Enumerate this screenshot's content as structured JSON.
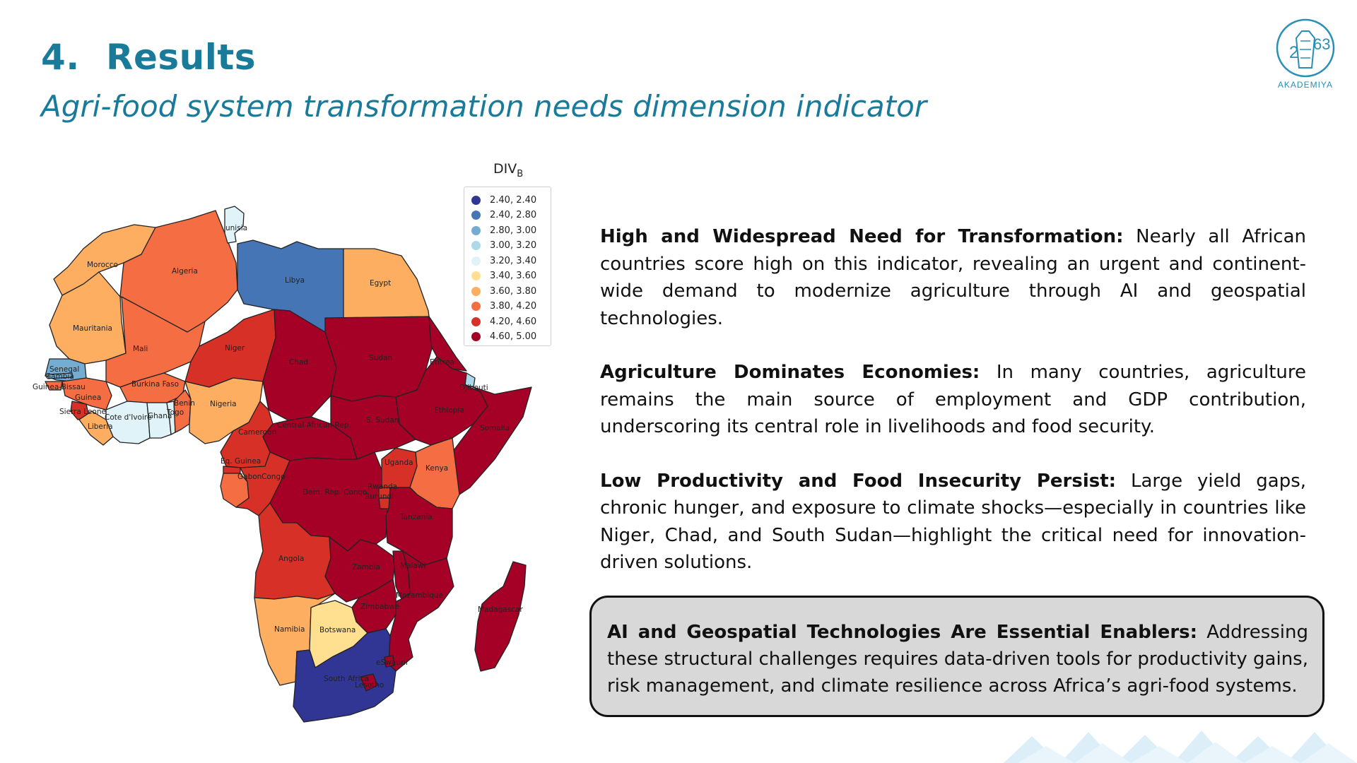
{
  "header": {
    "section_number": "4.",
    "title": "Results",
    "subtitle": "Agri-food system transformation needs dimension indicator"
  },
  "logo": {
    "text": "AKADEMIYA",
    "mark": "2063",
    "icon": "akademiya-logo-icon"
  },
  "map": {
    "legend_title": "DIV",
    "legend_subscript": "B",
    "legend": [
      {
        "label": "2.40, 2.40",
        "color": "#313695"
      },
      {
        "label": "2.40, 2.80",
        "color": "#4575b4"
      },
      {
        "label": "2.80, 3.00",
        "color": "#74add1"
      },
      {
        "label": "3.00, 3.20",
        "color": "#abd9e9"
      },
      {
        "label": "3.20, 3.40",
        "color": "#e0f3f8"
      },
      {
        "label": "3.40, 3.60",
        "color": "#fee090"
      },
      {
        "label": "3.60, 3.80",
        "color": "#fdae61"
      },
      {
        "label": "3.80, 4.20",
        "color": "#f46d43"
      },
      {
        "label": "4.20, 4.60",
        "color": "#d73027"
      },
      {
        "label": "4.60, 5.00",
        "color": "#a50026"
      }
    ],
    "countries": [
      {
        "name": "Tunisia",
        "shown": "unisia"
      },
      {
        "name": "Morocco",
        "shown": "Morocco"
      },
      {
        "name": "Algeria",
        "shown": "Algeria"
      },
      {
        "name": "Libya",
        "shown": "Libya"
      },
      {
        "name": "Egypt",
        "shown": "Egypt"
      },
      {
        "name": "Mauritania",
        "shown": "Mauritania"
      },
      {
        "name": "Mali",
        "shown": "Mali"
      },
      {
        "name": "Niger",
        "shown": "Niger"
      },
      {
        "name": "Chad",
        "shown": "Chad"
      },
      {
        "name": "Sudan",
        "shown": "Sudan"
      },
      {
        "name": "Eritrea",
        "shown": "Eritrea"
      },
      {
        "name": "Djibouti",
        "shown": "Djibouti"
      },
      {
        "name": "Senegal",
        "shown": "Senegal"
      },
      {
        "name": "Gambia",
        "shown": "Gambia"
      },
      {
        "name": "Guinea-Bissau",
        "shown": "Guinea-Bissau"
      },
      {
        "name": "Guinea",
        "shown": "Guinea"
      },
      {
        "name": "Burkina Faso",
        "shown": "Burkina Faso"
      },
      {
        "name": "Sierra Leone",
        "shown": "Sierra Leone"
      },
      {
        "name": "Liberia",
        "shown": "Liberia"
      },
      {
        "name": "Cote d'Ivoire",
        "shown": "Cote d'Ivoire"
      },
      {
        "name": "Ghana",
        "shown": "Ghana"
      },
      {
        "name": "Togo",
        "shown": "Togo"
      },
      {
        "name": "Benin",
        "shown": "Benin"
      },
      {
        "name": "Nigeria",
        "shown": "Nigeria"
      },
      {
        "name": "Cameroon",
        "shown": "Cameroon"
      },
      {
        "name": "Central African Rep.",
        "shown": "Central African Rep."
      },
      {
        "name": "S. Sudan",
        "shown": "S. Sudan"
      },
      {
        "name": "Ethiopia",
        "shown": "Ethiopia"
      },
      {
        "name": "Somalia",
        "shown": "Somalia"
      },
      {
        "name": "Eq. Guinea",
        "shown": "Eq. Guinea"
      },
      {
        "name": "Gabon",
        "shown": "Gabon"
      },
      {
        "name": "Congo",
        "shown": "Congo"
      },
      {
        "name": "Dem. Rep. Congo",
        "shown": "Dem. Rep. Congo"
      },
      {
        "name": "Uganda",
        "shown": "Uganda"
      },
      {
        "name": "Kenya",
        "shown": "Kenya"
      },
      {
        "name": "Rwanda",
        "shown": "Rwanda"
      },
      {
        "name": "Burundi",
        "shown": "Burundi"
      },
      {
        "name": "Tanzania",
        "shown": "Tanzania"
      },
      {
        "name": "Angola",
        "shown": "Angola"
      },
      {
        "name": "Zambia",
        "shown": "Zambia"
      },
      {
        "name": "Malawi",
        "shown": "Malawi"
      },
      {
        "name": "Mozambique",
        "shown": "Mozambique"
      },
      {
        "name": "Zimbabwe",
        "shown": "Zimbabwe"
      },
      {
        "name": "Madagascar",
        "shown": "Madagascar"
      },
      {
        "name": "Namibia",
        "shown": "Namibia"
      },
      {
        "name": "Botswana",
        "shown": "Botswana"
      },
      {
        "name": "South Africa",
        "shown": "South Africa"
      },
      {
        "name": "eSwatini",
        "shown": "eSwatini"
      },
      {
        "name": "Lesotho",
        "shown": "Lesotho"
      }
    ]
  },
  "findings": [
    {
      "heading": "High and Widespread Need for Transformation:",
      "body": "Nearly all African countries score high on this indicator, revealing an urgent and continent-wide demand to modernize agriculture through AI and geospatial technologies."
    },
    {
      "heading": "Agriculture Dominates Economies:",
      "body": "In many countries, agriculture remains the main source of employment and GDP contribution, underscoring its central role in livelihoods and food security."
    },
    {
      "heading": "Low Productivity and Food Insecurity Persist:",
      "body": "Large yield gaps, chronic hunger, and exposure to climate shocks—especially in countries like Niger, Chad, and South Sudan—highlight the critical need for innovation-driven solutions."
    }
  ],
  "callout": {
    "heading": "AI and Geospatial Technologies Are Essential Enablers:",
    "body": "Addressing these structural challenges requires data-driven tools for productivity gains, risk management, and climate resilience across Africa’s agri-food systems."
  }
}
